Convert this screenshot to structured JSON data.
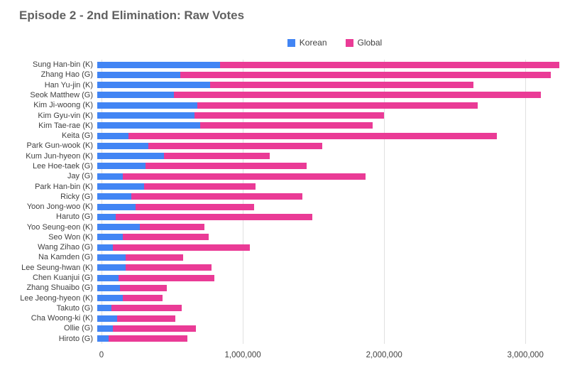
{
  "page": {
    "title": "Episode 2 - 2nd Elimination: Raw Votes"
  },
  "legend": {
    "items": [
      {
        "label": "Korean",
        "color": "#4285f4"
      },
      {
        "label": "Global",
        "color": "#ea3b96"
      }
    ]
  },
  "chart_data": {
    "type": "bar",
    "orientation": "horizontal",
    "stacked": true,
    "title": "Episode 2 - 2nd Elimination: Raw Votes",
    "xlabel": "",
    "ylabel": "",
    "grid": true,
    "legend_position": "top",
    "xlim": [
      0,
      3300000
    ],
    "x_ticks": [
      0,
      1000000,
      2000000,
      3000000
    ],
    "x_tick_labels": [
      "0",
      "1,000,000",
      "2,000,000",
      "3,000,000"
    ],
    "categories": [
      "Sung Han-bin (K)",
      "Zhang Hao (G)",
      "Han Yu-jin (K)",
      "Seok Matthew (G)",
      "Kim Ji-woong (K)",
      "Kim Gyu-vin (K)",
      "Kim Tae-rae (K)",
      "Keita (G)",
      "Park Gun-wook (K)",
      "Kum Jun-hyeon (K)",
      "Lee Hoe-taek (G)",
      "Jay (G)",
      "Park Han-bin (K)",
      "Ricky (G)",
      "Yoon Jong-woo (K)",
      "Haruto (G)",
      "Yoo Seung-eon (K)",
      "Seo Won (K)",
      "Wang Zihao (G)",
      "Na Kamden (G)",
      "Lee Seung-hwan (K)",
      "Chen Kuanjui (G)",
      "Zhang Shuaibo (G)",
      "Lee Jeong-hyeon (K)",
      "Takuto (G)",
      "Cha Woong-ki (K)",
      "Ollie (G)",
      "Hiroto (G)"
    ],
    "series": [
      {
        "name": "Korean",
        "color": "#4285f4",
        "values": [
          860000,
          580000,
          790000,
          540000,
          700000,
          680000,
          720000,
          220000,
          360000,
          470000,
          340000,
          180000,
          330000,
          240000,
          270000,
          130000,
          300000,
          180000,
          110000,
          200000,
          200000,
          150000,
          160000,
          180000,
          100000,
          140000,
          110000,
          80000
        ]
      },
      {
        "name": "Global",
        "color": "#ea3b96",
        "values": [
          2380000,
          2600000,
          1850000,
          2570000,
          1970000,
          1330000,
          1210000,
          2580000,
          1220000,
          740000,
          1130000,
          1700000,
          780000,
          1200000,
          830000,
          1380000,
          450000,
          600000,
          960000,
          400000,
          600000,
          670000,
          330000,
          280000,
          490000,
          410000,
          580000,
          550000
        ]
      }
    ]
  }
}
